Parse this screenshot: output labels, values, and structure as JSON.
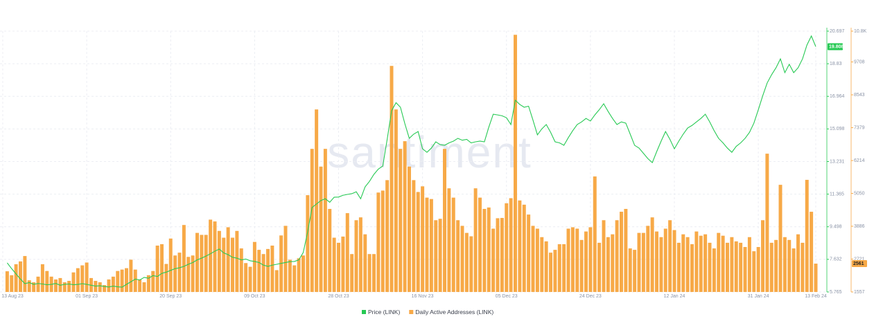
{
  "chart_data": {
    "type": "combo",
    "watermark": "santiment",
    "x": [
      "2023-08-14",
      "2023-08-15",
      "2023-08-16",
      "2023-08-17",
      "2023-08-18",
      "2023-08-19",
      "2023-08-20",
      "2023-08-21",
      "2023-08-22",
      "2023-08-23",
      "2023-08-24",
      "2023-08-25",
      "2023-08-26",
      "2023-08-27",
      "2023-08-28",
      "2023-08-29",
      "2023-08-30",
      "2023-08-31",
      "2023-09-01",
      "2023-09-02",
      "2023-09-03",
      "2023-09-04",
      "2023-09-05",
      "2023-09-06",
      "2023-09-07",
      "2023-09-08",
      "2023-09-09",
      "2023-09-10",
      "2023-09-11",
      "2023-09-12",
      "2023-09-13",
      "2023-09-14",
      "2023-09-15",
      "2023-09-16",
      "2023-09-17",
      "2023-09-18",
      "2023-09-19",
      "2023-09-20",
      "2023-09-21",
      "2023-09-22",
      "2023-09-23",
      "2023-09-24",
      "2023-09-25",
      "2023-09-26",
      "2023-09-27",
      "2023-09-28",
      "2023-09-29",
      "2023-09-30",
      "2023-10-01",
      "2023-10-02",
      "2023-10-03",
      "2023-10-04",
      "2023-10-05",
      "2023-10-06",
      "2023-10-07",
      "2023-10-08",
      "2023-10-09",
      "2023-10-10",
      "2023-10-11",
      "2023-10-12",
      "2023-10-13",
      "2023-10-14",
      "2023-10-15",
      "2023-10-16",
      "2023-10-17",
      "2023-10-18",
      "2023-10-19",
      "2023-10-20",
      "2023-10-21",
      "2023-10-22",
      "2023-10-23",
      "2023-10-24",
      "2023-10-25",
      "2023-10-26",
      "2023-10-27",
      "2023-10-28",
      "2023-10-29",
      "2023-10-30",
      "2023-10-31",
      "2023-11-01",
      "2023-11-02",
      "2023-11-03",
      "2023-11-04",
      "2023-11-05",
      "2023-11-06",
      "2023-11-07",
      "2023-11-08",
      "2023-11-09",
      "2023-11-10",
      "2023-11-11",
      "2023-11-12",
      "2023-11-13",
      "2023-11-14",
      "2023-11-15",
      "2023-11-16",
      "2023-11-17",
      "2023-11-18",
      "2023-11-19",
      "2023-11-20",
      "2023-11-21",
      "2023-11-22",
      "2023-11-23",
      "2023-11-24",
      "2023-11-25",
      "2023-11-26",
      "2023-11-27",
      "2023-11-28",
      "2023-11-29",
      "2023-11-30",
      "2023-12-01",
      "2023-12-02",
      "2023-12-03",
      "2023-12-04",
      "2023-12-05",
      "2023-12-06",
      "2023-12-07",
      "2023-12-08",
      "2023-12-09",
      "2023-12-10",
      "2023-12-11",
      "2023-12-12",
      "2023-12-13",
      "2023-12-14",
      "2023-12-15",
      "2023-12-16",
      "2023-12-17",
      "2023-12-18",
      "2023-12-19",
      "2023-12-20",
      "2023-12-21",
      "2023-12-22",
      "2023-12-23",
      "2023-12-24",
      "2023-12-25",
      "2023-12-26",
      "2023-12-27",
      "2023-12-28",
      "2023-12-29",
      "2023-12-30",
      "2023-12-31",
      "2024-01-01",
      "2024-01-02",
      "2024-01-03",
      "2024-01-04",
      "2024-01-05",
      "2024-01-06",
      "2024-01-07",
      "2024-01-08",
      "2024-01-09",
      "2024-01-10",
      "2024-01-11",
      "2024-01-12",
      "2024-01-13",
      "2024-01-14",
      "2024-01-15",
      "2024-01-16",
      "2024-01-17",
      "2024-01-18",
      "2024-01-19",
      "2024-01-20",
      "2024-01-21",
      "2024-01-22",
      "2024-01-23",
      "2024-01-24",
      "2024-01-25",
      "2024-01-26",
      "2024-01-27",
      "2024-01-28",
      "2024-01-29",
      "2024-01-30",
      "2024-01-31",
      "2024-02-01",
      "2024-02-02",
      "2024-02-03",
      "2024-02-04",
      "2024-02-05",
      "2024-02-06",
      "2024-02-07",
      "2024-02-08",
      "2024-02-09",
      "2024-02-10",
      "2024-02-11",
      "2024-02-12",
      "2024-02-13"
    ],
    "xlim": [
      "2023-08-13",
      "2024-02-13"
    ],
    "xticks": [
      {
        "value": "2023-08-13",
        "label": "13 Aug 23"
      },
      {
        "value": "2023-09-01",
        "label": "01 Sep 23"
      },
      {
        "value": "2023-09-20",
        "label": "20 Sep 23"
      },
      {
        "value": "2023-10-09",
        "label": "09 Oct 23"
      },
      {
        "value": "2023-10-28",
        "label": "28 Oct 23"
      },
      {
        "value": "2023-11-16",
        "label": "16 Nov 23"
      },
      {
        "value": "2023-12-05",
        "label": "05 Dec 23"
      },
      {
        "value": "2023-12-24",
        "label": "24 Dec 23"
      },
      {
        "value": "2024-01-12",
        "label": "12 Jan 24"
      },
      {
        "value": "2024-01-31",
        "label": "31 Jan 24"
      },
      {
        "value": "2024-02-13",
        "label": "13 Feb 24"
      }
    ],
    "ylim": [
      5.765,
      20.697
    ],
    "yticks": [
      20.697,
      18.83,
      16.964,
      15.098,
      13.231,
      11.365,
      9.498,
      7.632,
      5.765
    ],
    "y2lim": [
      1557,
      10800
    ],
    "y2ticks": [
      {
        "value": 10800,
        "label": "10.8K"
      },
      9708,
      8543,
      7379,
      6214,
      5050,
      3886,
      2721,
      1557
    ],
    "grid": true,
    "series": [
      {
        "name": "Price (LINK)",
        "color": "#26c953",
        "type": "line",
        "axis": "y",
        "values": [
          7.43,
          7.1,
          6.8,
          6.5,
          6.24,
          6.3,
          6.2,
          6.25,
          6.22,
          6.18,
          6.2,
          6.25,
          6.15,
          6.2,
          6.22,
          6.18,
          6.2,
          6.24,
          6.2,
          6.15,
          6.1,
          6.12,
          6.08,
          6.05,
          6.1,
          6.06,
          6.04,
          6.2,
          6.35,
          6.5,
          6.45,
          6.6,
          6.55,
          6.7,
          6.65,
          6.83,
          6.9,
          7.0,
          7.1,
          7.15,
          7.23,
          7.35,
          7.45,
          7.6,
          7.7,
          7.82,
          7.95,
          8.1,
          8.22,
          8.0,
          7.9,
          7.75,
          7.7,
          7.6,
          7.65,
          7.55,
          7.51,
          7.45,
          7.3,
          7.23,
          7.3,
          7.35,
          7.4,
          7.45,
          7.5,
          7.51,
          7.6,
          8.02,
          9.2,
          10.6,
          10.8,
          11.0,
          11.1,
          10.9,
          11.19,
          11.2,
          11.3,
          11.35,
          11.39,
          11.5,
          11.1,
          11.78,
          12.1,
          12.5,
          12.8,
          12.97,
          14.5,
          16.14,
          16.6,
          16.34,
          15.4,
          14.56,
          14.8,
          14.95,
          13.96,
          13.76,
          14.0,
          14.36,
          14.2,
          14.16,
          14.3,
          14.4,
          14.56,
          14.45,
          14.5,
          14.3,
          14.36,
          14.4,
          14.36,
          15.2,
          15.94,
          15.9,
          15.85,
          15.74,
          15.35,
          16.74,
          16.5,
          16.34,
          16.4,
          15.6,
          14.76,
          15.1,
          15.35,
          14.9,
          14.36,
          14.3,
          14.16,
          14.6,
          15.0,
          15.35,
          15.5,
          15.7,
          15.55,
          15.9,
          16.2,
          16.54,
          16.1,
          15.7,
          15.35,
          15.5,
          15.43,
          14.8,
          14.16,
          14.0,
          13.7,
          13.4,
          13.17,
          13.8,
          14.4,
          14.95,
          14.5,
          13.96,
          14.4,
          14.8,
          15.15,
          15.3,
          15.5,
          15.7,
          15.94,
          15.5,
          15.0,
          14.56,
          14.3,
          14.0,
          13.76,
          14.1,
          14.3,
          14.56,
          14.9,
          15.43,
          16.2,
          17.0,
          17.73,
          18.2,
          18.6,
          19.11,
          18.32,
          18.8,
          18.32,
          18.6,
          19.11,
          19.9,
          20.42,
          19.808
        ]
      },
      {
        "name": "Daily Active Addresses (LINK)",
        "color": "#f7a947",
        "type": "bar",
        "axis": "y2",
        "values": [
          2290,
          2150,
          2540,
          2640,
          2830,
          1970,
          1900,
          2100,
          2540,
          2300,
          2100,
          2000,
          2050,
          1900,
          1950,
          2250,
          2400,
          2500,
          2600,
          2050,
          1950,
          1900,
          1800,
          2000,
          2100,
          2300,
          2350,
          2400,
          2700,
          2350,
          2000,
          1900,
          2150,
          2300,
          3200,
          3250,
          2550,
          3450,
          2850,
          2950,
          3930,
          2800,
          2850,
          3650,
          3580,
          3580,
          4120,
          4056,
          3720,
          3480,
          3850,
          3480,
          3720,
          3100,
          2580,
          2450,
          3330,
          3050,
          2900,
          3080,
          3200,
          2330,
          3560,
          3900,
          2700,
          2500,
          2750,
          2850,
          4987,
          6628,
          8025,
          6000,
          6628,
          4500,
          3480,
          3300,
          3520,
          4350,
          2900,
          4100,
          4200,
          3600,
          2900,
          2900,
          5080,
          5150,
          5520,
          9568,
          8025,
          6628,
          6900,
          6000,
          5520,
          5100,
          5300,
          4900,
          4850,
          4100,
          4150,
          6628,
          5230,
          4900,
          4100,
          3900,
          3650,
          3530,
          5230,
          4900,
          4500,
          4550,
          3800,
          4170,
          4180,
          4700,
          4880,
          10670,
          4800,
          4650,
          4300,
          3900,
          3800,
          3500,
          3350,
          2950,
          3050,
          3250,
          3250,
          3800,
          3850,
          3800,
          3400,
          3700,
          3850,
          5650,
          3300,
          4100,
          3500,
          3600,
          4100,
          4400,
          4500,
          3100,
          3050,
          3650,
          3650,
          3900,
          4200,
          3700,
          3500,
          3800,
          4100,
          3750,
          3300,
          3600,
          3500,
          3250,
          3700,
          3550,
          3600,
          3300,
          3100,
          3650,
          3550,
          3300,
          3500,
          3350,
          3300,
          3150,
          3500,
          3000,
          3150,
          4100,
          6457,
          3300,
          3400,
          5354,
          3500,
          3400,
          3100,
          3600,
          3300,
          5530,
          4399,
          2561
        ]
      }
    ]
  }
}
